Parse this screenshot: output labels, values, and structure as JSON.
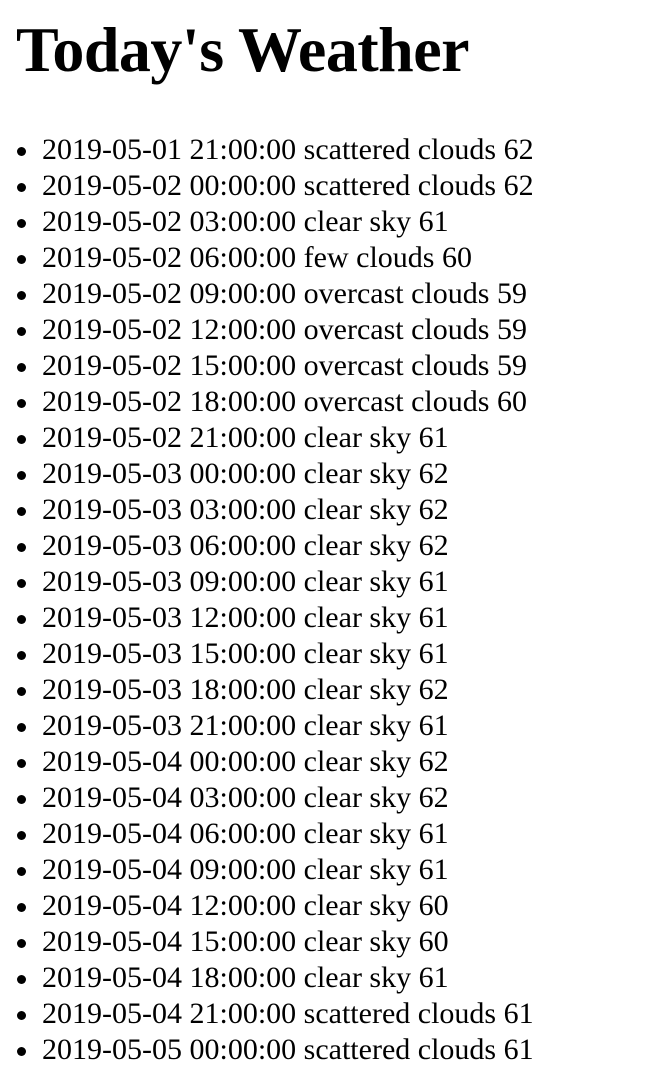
{
  "header": {
    "title": "Today's Weather"
  },
  "forecast": [
    {
      "datetime": "2019-05-01 21:00:00",
      "description": "scattered clouds",
      "temp": "62"
    },
    {
      "datetime": "2019-05-02 00:00:00",
      "description": "scattered clouds",
      "temp": "62"
    },
    {
      "datetime": "2019-05-02 03:00:00",
      "description": "clear sky",
      "temp": "61"
    },
    {
      "datetime": "2019-05-02 06:00:00",
      "description": "few clouds",
      "temp": "60"
    },
    {
      "datetime": "2019-05-02 09:00:00",
      "description": "overcast clouds",
      "temp": "59"
    },
    {
      "datetime": "2019-05-02 12:00:00",
      "description": "overcast clouds",
      "temp": "59"
    },
    {
      "datetime": "2019-05-02 15:00:00",
      "description": "overcast clouds",
      "temp": "59"
    },
    {
      "datetime": "2019-05-02 18:00:00",
      "description": "overcast clouds",
      "temp": "60"
    },
    {
      "datetime": "2019-05-02 21:00:00",
      "description": "clear sky",
      "temp": "61"
    },
    {
      "datetime": "2019-05-03 00:00:00",
      "description": "clear sky",
      "temp": "62"
    },
    {
      "datetime": "2019-05-03 03:00:00",
      "description": "clear sky",
      "temp": "62"
    },
    {
      "datetime": "2019-05-03 06:00:00",
      "description": "clear sky",
      "temp": "62"
    },
    {
      "datetime": "2019-05-03 09:00:00",
      "description": "clear sky",
      "temp": "61"
    },
    {
      "datetime": "2019-05-03 12:00:00",
      "description": "clear sky",
      "temp": "61"
    },
    {
      "datetime": "2019-05-03 15:00:00",
      "description": "clear sky",
      "temp": "61"
    },
    {
      "datetime": "2019-05-03 18:00:00",
      "description": "clear sky",
      "temp": "62"
    },
    {
      "datetime": "2019-05-03 21:00:00",
      "description": "clear sky",
      "temp": "61"
    },
    {
      "datetime": "2019-05-04 00:00:00",
      "description": "clear sky",
      "temp": "62"
    },
    {
      "datetime": "2019-05-04 03:00:00",
      "description": "clear sky",
      "temp": "62"
    },
    {
      "datetime": "2019-05-04 06:00:00",
      "description": "clear sky",
      "temp": "61"
    },
    {
      "datetime": "2019-05-04 09:00:00",
      "description": "clear sky",
      "temp": "61"
    },
    {
      "datetime": "2019-05-04 12:00:00",
      "description": "clear sky",
      "temp": "60"
    },
    {
      "datetime": "2019-05-04 15:00:00",
      "description": "clear sky",
      "temp": "60"
    },
    {
      "datetime": "2019-05-04 18:00:00",
      "description": "clear sky",
      "temp": "61"
    },
    {
      "datetime": "2019-05-04 21:00:00",
      "description": "scattered clouds",
      "temp": "61"
    },
    {
      "datetime": "2019-05-05 00:00:00",
      "description": "scattered clouds",
      "temp": "61"
    }
  ]
}
